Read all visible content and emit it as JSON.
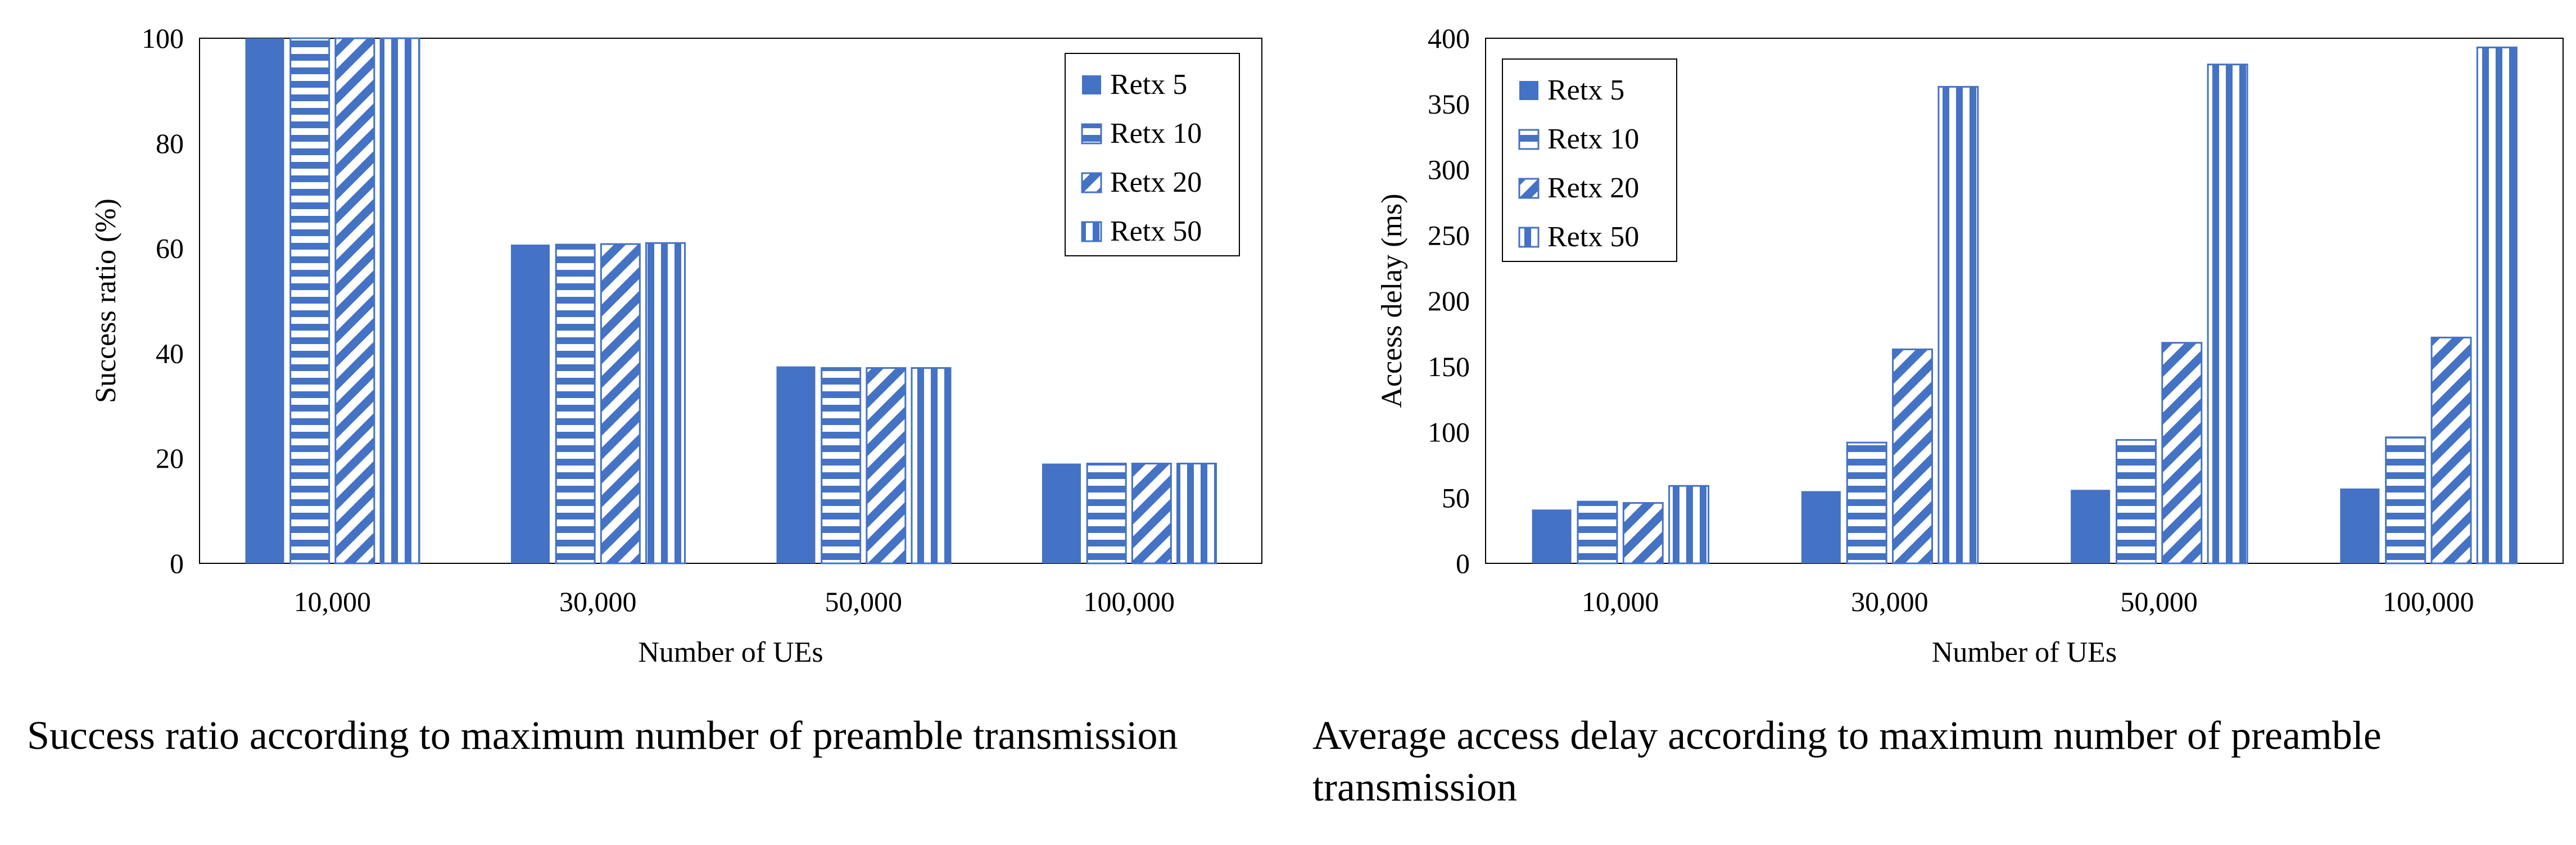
{
  "colors": {
    "series": "#4472C4",
    "axis": "#000000"
  },
  "charts": [
    {
      "caption": "Success ratio according to maximum number of preamble transmission"
    },
    {
      "caption": "Average access delay according to maximum number of preamble transmission"
    }
  ],
  "chart_data": [
    {
      "type": "bar",
      "categories": [
        "10,000",
        "30,000",
        "50,000",
        "100,000"
      ],
      "series": [
        {
          "name": "Retx 5",
          "pattern": "solid",
          "values": [
            100,
            60.7,
            37.5,
            19
          ]
        },
        {
          "name": "Retx 10",
          "pattern": "horizontal",
          "values": [
            100,
            60.7,
            37.2,
            19
          ]
        },
        {
          "name": "Retx 20",
          "pattern": "diagonal",
          "values": [
            100,
            60.8,
            37.2,
            19
          ]
        },
        {
          "name": "Retx 50",
          "pattern": "vertical",
          "values": [
            100,
            61,
            37.2,
            19
          ]
        }
      ],
      "xlabel": "Number of UEs",
      "ylabel": "Success ratio (%)",
      "ylim": [
        0,
        100
      ],
      "yticks": [
        0,
        20,
        40,
        60,
        80,
        100
      ],
      "grid": false,
      "legend": "top-right"
    },
    {
      "type": "bar",
      "categories": [
        "10,000",
        "30,000",
        "50,000",
        "100,000"
      ],
      "series": [
        {
          "name": "Retx 5",
          "pattern": "solid",
          "values": [
            41,
            55,
            56,
            57
          ]
        },
        {
          "name": "Retx 10",
          "pattern": "horizontal",
          "values": [
            47,
            92,
            94,
            96
          ]
        },
        {
          "name": "Retx 20",
          "pattern": "diagonal",
          "values": [
            46,
            163,
            168,
            172
          ]
        },
        {
          "name": "Retx 50",
          "pattern": "vertical",
          "values": [
            59,
            363,
            380,
            393
          ]
        }
      ],
      "xlabel": "Number of UEs",
      "ylabel": "Access delay (ms)",
      "ylim": [
        0,
        400
      ],
      "yticks": [
        0,
        50,
        100,
        150,
        200,
        250,
        300,
        350,
        400
      ],
      "grid": false,
      "legend": "top-left"
    }
  ]
}
